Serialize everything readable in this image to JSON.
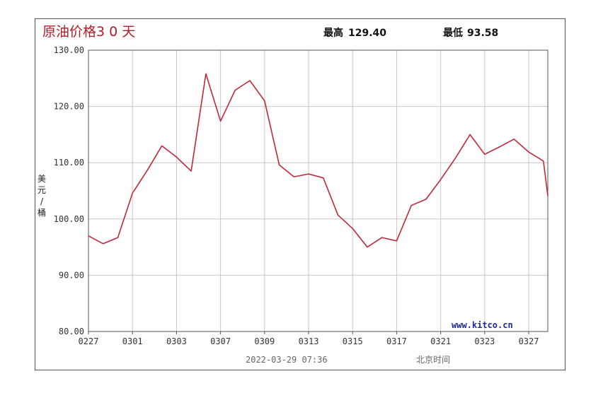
{
  "header": {
    "title": "原油价格3 0 天",
    "high_label": "最高",
    "high_value": "129.40",
    "low_label": "最低",
    "low_value": "93.58"
  },
  "footer": {
    "timestamp": "2022-03-29 07:36",
    "timezone_label": "北京时间",
    "brand": "www.kitco.cn"
  },
  "colors": {
    "line": "#c0283a",
    "grid": "#c8c8c8",
    "axis": "#555555"
  },
  "chart_data": {
    "type": "line",
    "title": "原油价格3 0 天",
    "xlabel": "",
    "ylabel": "美元/桶",
    "ylabel_chars": [
      "美",
      "元",
      "/",
      "桶"
    ],
    "ylim": [
      80,
      130
    ],
    "yticks": [
      "80.00",
      "90.00",
      "100.00",
      "110.00",
      "120.00",
      "130.00"
    ],
    "xlim": [
      0,
      31.3
    ],
    "xticks": [
      {
        "label": "0227",
        "x": 0
      },
      {
        "label": "0301",
        "x": 3
      },
      {
        "label": "0303",
        "x": 6
      },
      {
        "label": "0307",
        "x": 9
      },
      {
        "label": "0309",
        "x": 12
      },
      {
        "label": "0313",
        "x": 15
      },
      {
        "label": "0315",
        "x": 18
      },
      {
        "label": "0317",
        "x": 21
      },
      {
        "label": "0321",
        "x": 24
      },
      {
        "label": "0323",
        "x": 27
      },
      {
        "label": "0327",
        "x": 30
      }
    ],
    "grid": true,
    "series": [
      {
        "x": [
          0,
          1,
          2,
          3,
          4,
          5,
          6,
          7,
          8,
          9,
          10,
          11,
          12,
          13,
          14,
          15,
          16,
          17,
          18,
          19,
          20,
          21,
          22,
          23,
          24,
          25,
          26,
          27,
          28,
          29,
          30,
          31,
          31.3
        ],
        "y": [
          97.0,
          95.6,
          96.7,
          104.6,
          108.6,
          113.0,
          111.0,
          108.5,
          125.8,
          117.4,
          122.9,
          124.6,
          121.0,
          109.6,
          107.5,
          108.0,
          107.3,
          100.7,
          98.3,
          95.0,
          96.7,
          96.1,
          102.4,
          103.5,
          107.0,
          110.8,
          115.0,
          111.5,
          112.8,
          114.2,
          111.9,
          110.3,
          104.1
        ]
      }
    ]
  }
}
